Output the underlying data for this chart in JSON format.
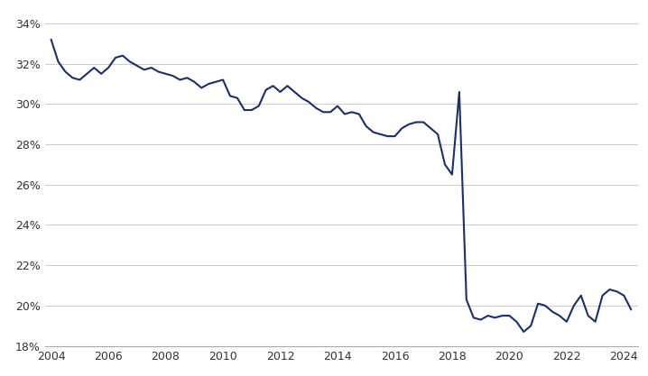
{
  "x": [
    2004.0,
    2004.25,
    2004.5,
    2004.75,
    2005.0,
    2005.25,
    2005.5,
    2005.75,
    2006.0,
    2006.25,
    2006.5,
    2006.75,
    2007.0,
    2007.25,
    2007.5,
    2007.75,
    2008.0,
    2008.25,
    2008.5,
    2008.75,
    2009.0,
    2009.25,
    2009.5,
    2009.75,
    2010.0,
    2010.25,
    2010.5,
    2010.75,
    2011.0,
    2011.25,
    2011.5,
    2011.75,
    2012.0,
    2012.25,
    2012.5,
    2012.75,
    2013.0,
    2013.25,
    2013.5,
    2013.75,
    2014.0,
    2014.25,
    2014.5,
    2014.75,
    2015.0,
    2015.25,
    2015.5,
    2015.75,
    2016.0,
    2016.25,
    2016.5,
    2016.75,
    2017.0,
    2017.25,
    2017.5,
    2017.75,
    2018.0,
    2018.25,
    2018.5,
    2018.75,
    2019.0,
    2019.25,
    2019.5,
    2019.75,
    2020.0,
    2020.25,
    2020.5,
    2020.75,
    2021.0,
    2021.25,
    2021.5,
    2021.75,
    2022.0,
    2022.25,
    2022.5,
    2022.75,
    2023.0,
    2023.25,
    2023.5,
    2023.75,
    2024.0,
    2024.25
  ],
  "y": [
    33.2,
    32.1,
    31.6,
    31.3,
    31.2,
    31.5,
    31.8,
    31.5,
    31.8,
    32.3,
    32.4,
    32.1,
    31.9,
    31.7,
    31.8,
    31.6,
    31.5,
    31.4,
    31.2,
    31.3,
    31.1,
    30.8,
    31.0,
    31.1,
    31.2,
    30.4,
    30.3,
    29.7,
    29.7,
    29.9,
    30.7,
    30.9,
    30.6,
    30.9,
    30.6,
    30.3,
    30.1,
    29.8,
    29.6,
    29.6,
    29.9,
    29.5,
    29.6,
    29.5,
    28.9,
    28.6,
    28.5,
    28.4,
    28.4,
    28.8,
    29.0,
    29.1,
    29.1,
    28.8,
    28.5,
    27.0,
    26.5,
    30.6,
    20.3,
    19.4,
    19.3,
    19.5,
    19.4,
    19.5,
    19.5,
    19.2,
    18.7,
    19.0,
    20.1,
    20.0,
    19.7,
    19.5,
    19.2,
    20.0,
    20.5,
    19.5,
    19.2,
    20.5,
    20.8,
    20.7,
    20.5,
    19.8
  ],
  "line_color": "#1a2f6e",
  "line_width": 1.5,
  "background_color": "#ffffff",
  "grid_color": "#cccccc",
  "ytick_labels": [
    "18%",
    "20%",
    "22%",
    "24%",
    "26%",
    "28%",
    "30%",
    "32%",
    "34%"
  ],
  "ytick_values": [
    18,
    20,
    22,
    24,
    26,
    28,
    30,
    32,
    34
  ],
  "xtick_values": [
    2004,
    2006,
    2008,
    2010,
    2012,
    2014,
    2016,
    2018,
    2020,
    2022,
    2024
  ],
  "xlim": [
    2003.8,
    2024.5
  ],
  "ylim": [
    18.0,
    34.6
  ],
  "tick_fontsize": 9,
  "tick_color": "#333333",
  "figsize": [
    7.18,
    4.17
  ],
  "dpi": 100
}
